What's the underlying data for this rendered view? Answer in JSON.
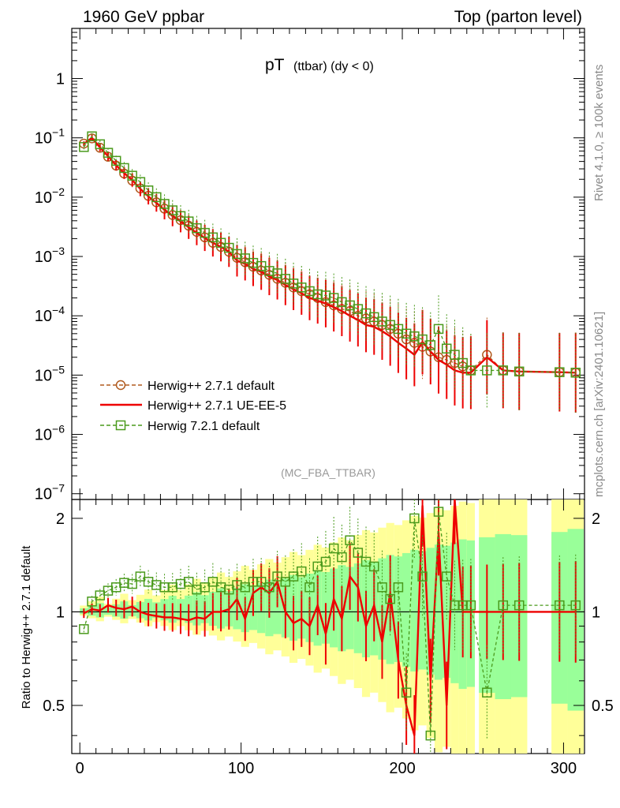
{
  "header": {
    "left_title": "1960 GeV ppbar",
    "right_title": "Top (parton level)"
  },
  "side_labels": {
    "rivet": "Rivet 4.1.0, ≥ 100k events",
    "mcplots": "mcplots.cern.ch [arXiv:2401.10621]"
  },
  "plot": {
    "title_main": "pT",
    "title_sub": "(ttbar) (dy < 0)",
    "analysis_tag": "(MC_FBA_TTBAR)",
    "ratio_ylabel": "Ratio to Herwig++ 2.7.1 default"
  },
  "chart_data": {
    "type": "line",
    "title": "pT (ttbar) (dy < 0)",
    "xlabel": "",
    "ylabel": "",
    "xlim": [
      -5,
      313
    ],
    "ylim": [
      8e-08,
      7
    ],
    "ratio_ylim": [
      0.35,
      2.3
    ],
    "yscale": "log",
    "x_ticks": [
      "0",
      "100",
      "200",
      "300"
    ],
    "y_ticks": [
      "10^-7",
      "10^-6",
      "10^-5",
      "10^-4",
      "10^-3",
      "10^-2",
      "10^-1",
      "1"
    ],
    "ratio_ticks": [
      "0.5",
      "1",
      "2"
    ],
    "legend": [
      {
        "name": "Herwig++ 2.7.1 default",
        "color": "#b05a1e",
        "style": "dashed",
        "marker": "circle"
      },
      {
        "name": "Herwig++ 2.7.1 UE-EE-5",
        "color": "#ee0000",
        "style": "solid",
        "marker": "none"
      },
      {
        "name": "Herwig 7.2.1 default",
        "color": "#4a9a1c",
        "style": "dashed",
        "marker": "square"
      }
    ],
    "x": [
      2.5,
      7.5,
      12.5,
      17.5,
      22.5,
      27.5,
      32.5,
      37.5,
      42.5,
      47.5,
      52.5,
      57.5,
      62.5,
      67.5,
      72.5,
      77.5,
      82.5,
      87.5,
      92.5,
      97.5,
      102.5,
      107.5,
      112.5,
      117.5,
      122.5,
      127.5,
      132.5,
      137.5,
      142.5,
      147.5,
      152.5,
      157.5,
      162.5,
      167.5,
      172.5,
      177.5,
      182.5,
      187.5,
      192.5,
      197.5,
      202.5,
      207.5,
      212.5,
      217.5,
      222.5,
      227.5,
      232.5,
      237.5,
      242.5,
      252.5,
      262.5,
      272.5,
      297.5,
      307.5
    ],
    "series": [
      {
        "name": "Herwig++ 2.7.1 default",
        "values": [
          0.08,
          0.098,
          0.068,
          0.048,
          0.034,
          0.025,
          0.019,
          0.014,
          0.0105,
          0.0082,
          0.0064,
          0.005,
          0.0041,
          0.0033,
          0.0026,
          0.0021,
          0.0017,
          0.00145,
          0.0012,
          0.00095,
          0.0008,
          0.00067,
          0.00058,
          0.00049,
          0.00042,
          0.00036,
          0.0003,
          0.00026,
          0.00023,
          0.0002,
          0.00017,
          0.00015,
          0.00013,
          0.00012,
          0.0001,
          9e-05,
          8e-05,
          7e-05,
          6e-05,
          5e-05,
          4e-05,
          3.5e-05,
          3e-05,
          2.5e-05,
          2e-05,
          1.8e-05,
          1.6e-05,
          1.4e-05,
          1.2e-05,
          2.2e-05,
          1.2e-05,
          1.15e-05,
          1.12e-05,
          1.1e-05
        ]
      },
      {
        "name": "Herwig++ 2.7.1 UE-EE-5",
        "values": [
          0.079,
          0.1,
          0.069,
          0.049,
          0.0345,
          0.0255,
          0.0195,
          0.0138,
          0.0103,
          0.008,
          0.0061,
          0.0048,
          0.0039,
          0.0031,
          0.0025,
          0.00205,
          0.0017,
          0.00145,
          0.0012,
          0.00085,
          0.00075,
          0.00062,
          0.00055,
          0.00046,
          0.0004,
          0.00033,
          0.00028,
          0.00024,
          0.0002,
          0.00018,
          0.00016,
          0.00014,
          0.00012,
          0.0001,
          8.5e-05,
          7e-05,
          6.5e-05,
          5.5e-05,
          4.5e-05,
          3.5e-05,
          2.8e-05,
          2.2e-05,
          3.6e-05,
          2.5e-05,
          1.8e-05,
          1.5e-05,
          1.2e-05,
          1.1e-05,
          1.1e-05,
          2e-05,
          1.2e-05,
          1.15e-05,
          1.12e-05,
          1.1e-05
        ]
      },
      {
        "name": "Herwig 7.2.1 default",
        "values": [
          0.07,
          0.106,
          0.078,
          0.056,
          0.041,
          0.031,
          0.023,
          0.018,
          0.013,
          0.01,
          0.0077,
          0.006,
          0.0048,
          0.0039,
          0.003,
          0.0025,
          0.0021,
          0.0017,
          0.0014,
          0.0011,
          0.00093,
          0.00078,
          0.00069,
          0.00057,
          0.00052,
          0.00042,
          0.00035,
          0.0003,
          0.00026,
          0.00023,
          0.00022,
          0.0002,
          0.00017,
          0.00015,
          0.00013,
          0.00011,
          9.5e-05,
          8e-05,
          7e-05,
          6e-05,
          5e-05,
          4.5e-05,
          4e-05,
          3.2e-05,
          6e-05,
          2.8e-05,
          2.2e-05,
          1.6e-05,
          1.2e-05,
          1.2e-05,
          1.2e-05,
          1.15e-05,
          1.12e-05,
          1.1e-05
        ]
      }
    ],
    "ratio_series": [
      {
        "name": "Herwig++ 2.7.1 UE-EE-5",
        "values": [
          0.99,
          1.02,
          1.01,
          1.05,
          1.03,
          1.02,
          1.04,
          1.0,
          0.98,
          0.97,
          0.96,
          0.96,
          0.95,
          0.94,
          0.96,
          0.95,
          1.0,
          1.0,
          1.02,
          1.1,
          0.95,
          1.15,
          1.2,
          1.15,
          1.25,
          1.0,
          0.92,
          0.95,
          0.9,
          1.05,
          0.85,
          1.1,
          0.95,
          1.3,
          1.2,
          0.9,
          1.05,
          0.8,
          1.15,
          0.7,
          0.5,
          0.4,
          2.2,
          0.6,
          1.8,
          0.5,
          2.3,
          1.0,
          1.0,
          1.0,
          1.0,
          1.0,
          1.0,
          1.0
        ]
      },
      {
        "name": "Herwig 7.2.1 default",
        "values": [
          0.88,
          1.08,
          1.13,
          1.17,
          1.2,
          1.24,
          1.23,
          1.3,
          1.25,
          1.22,
          1.2,
          1.2,
          1.23,
          1.25,
          1.18,
          1.2,
          1.25,
          1.2,
          1.18,
          1.22,
          1.2,
          1.25,
          1.25,
          1.2,
          1.3,
          1.25,
          1.3,
          1.35,
          1.2,
          1.4,
          1.45,
          1.6,
          1.5,
          1.7,
          1.55,
          1.45,
          1.4,
          1.2,
          1.1,
          1.2,
          0.55,
          2.0,
          1.3,
          0.4,
          2.1,
          1.3,
          1.05,
          1.05,
          1.05,
          0.55,
          1.05,
          1.05,
          1.05,
          1.05
        ]
      }
    ]
  }
}
